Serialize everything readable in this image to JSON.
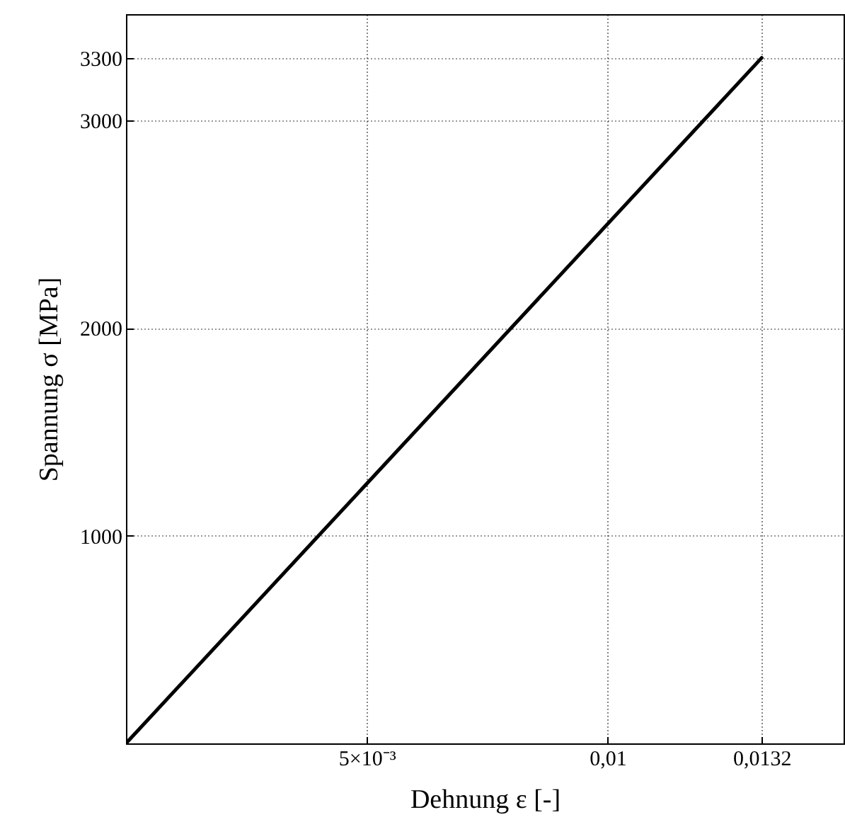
{
  "chart_data": {
    "type": "line",
    "xlabel": "Dehnung ε [-]",
    "ylabel": "Spannung σ [MPa]",
    "x": [
      0,
      0.0132
    ],
    "series": [
      {
        "color": "#000000",
        "values": [
          0,
          3300
        ]
      }
    ],
    "xlim": [
      0,
      0.0149
    ],
    "ylim": [
      0,
      3510
    ],
    "xticks": [
      {
        "value": 0.005,
        "label": "5×10⁻³"
      },
      {
        "value": 0.01,
        "label": "0,01"
      },
      {
        "value": 0.0132,
        "label": "0,0132"
      }
    ],
    "yticks": [
      1000,
      2000,
      3000,
      3300
    ],
    "grid": true,
    "line_style": "solid",
    "marker": "none"
  }
}
